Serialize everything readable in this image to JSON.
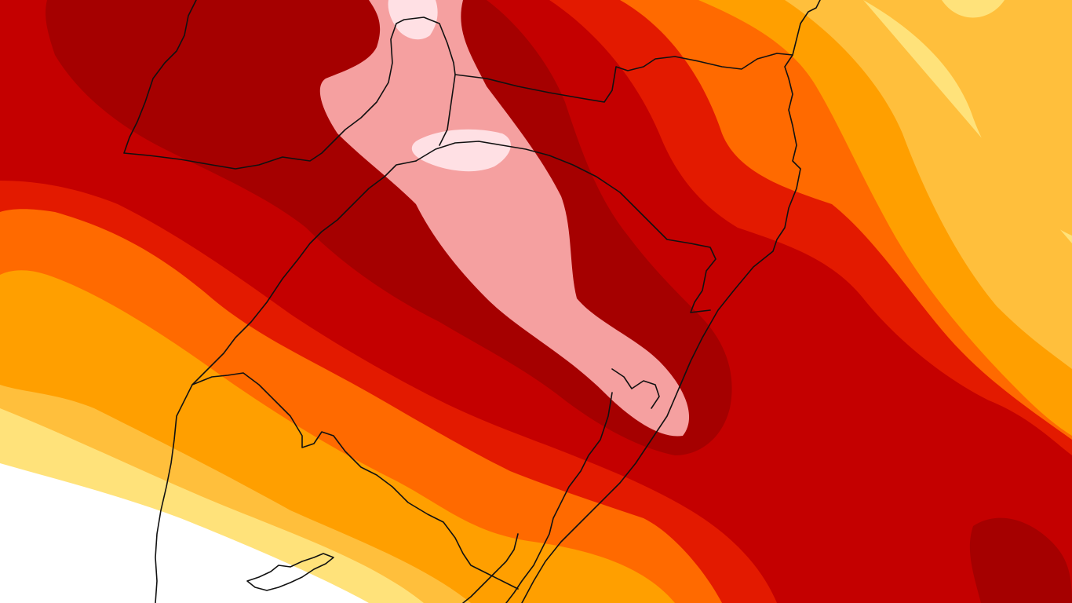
{
  "map": {
    "type": "filled-contour",
    "legend": "none",
    "colors": {
      "band_1": "#ffffff",
      "band_2": "#ffe27a",
      "band_3": "#ffbf3c",
      "band_4": "#ff9f00",
      "band_5": "#ff6a00",
      "band_6": "#e31a00",
      "band_7": "#c40000",
      "band_8": "#a50000",
      "band_9": "#f5a0a0",
      "band_10": "#ffe0e4",
      "border": "#111111"
    }
  }
}
